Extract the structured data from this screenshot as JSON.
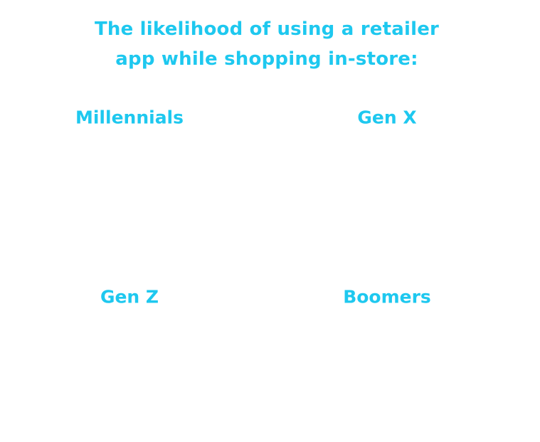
{
  "title_lines": [
    "The likelihood of using a retailer",
    "app while shopping in-store:"
  ],
  "groups": [
    "Millennials",
    "Gen X",
    "Gen Z",
    "Boomers"
  ]
}
